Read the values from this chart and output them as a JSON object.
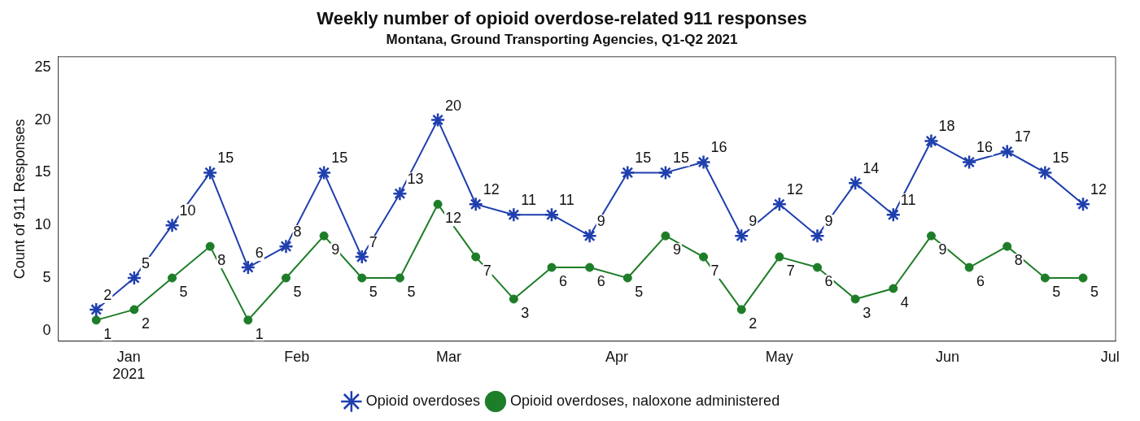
{
  "chart_data": {
    "type": "line",
    "title": "Weekly number of opioid overdose-related 911 responses",
    "subtitle": "Montana, Ground Transporting Agencies, Q1-Q2 2021",
    "ylabel": "Count of 911 Responses",
    "x": [
      "2020-12-26",
      "2021-01-02",
      "2021-01-09",
      "2021-01-16",
      "2021-01-23",
      "2021-01-30",
      "2021-02-06",
      "2021-02-13",
      "2021-02-20",
      "2021-02-27",
      "2021-03-06",
      "2021-03-13",
      "2021-03-20",
      "2021-03-27",
      "2021-04-03",
      "2021-04-10",
      "2021-04-17",
      "2021-04-24",
      "2021-05-01",
      "2021-05-08",
      "2021-05-15",
      "2021-05-22",
      "2021-05-29",
      "2021-06-05",
      "2021-06-12",
      "2021-06-19",
      "2021-06-26"
    ],
    "series": [
      {
        "name": "Opioid overdoses",
        "color": "#1f3fae",
        "marker": "cross",
        "values": [
          2,
          5,
          10,
          15,
          6,
          8,
          15,
          7,
          13,
          20,
          12,
          11,
          11,
          9,
          15,
          15,
          16,
          9,
          12,
          9,
          14,
          11,
          18,
          16,
          17,
          15,
          12
        ]
      },
      {
        "name": "Opioid overdoses, naloxone administered",
        "color": "#1e7d28",
        "marker": "circle",
        "values": [
          1,
          2,
          5,
          8,
          1,
          5,
          9,
          5,
          5,
          12,
          7,
          3,
          6,
          6,
          5,
          9,
          7,
          2,
          7,
          6,
          3,
          4,
          9,
          6,
          8,
          5,
          5
        ]
      }
    ],
    "xlim": [
      "2020-12-19",
      "2021-07-02"
    ],
    "xticks": [
      {
        "value": "2021-01-01",
        "label": "Jan\n2021"
      },
      {
        "value": "2021-02-01",
        "label": "Feb"
      },
      {
        "value": "2021-03-01",
        "label": "Mar"
      },
      {
        "value": "2021-04-01",
        "label": "Apr"
      },
      {
        "value": "2021-05-01",
        "label": "May"
      },
      {
        "value": "2021-06-01",
        "label": "Jun"
      },
      {
        "value": "2021-07-01",
        "label": "Jul"
      }
    ],
    "ylim": [
      -1,
      26
    ],
    "yticks": [
      0,
      5,
      10,
      15,
      20,
      25
    ],
    "grid": false,
    "legend": "bottom",
    "data_labels": true,
    "line_style": "solid"
  }
}
